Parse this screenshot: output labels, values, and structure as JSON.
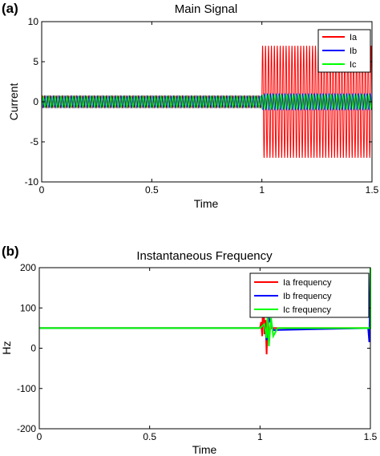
{
  "chart_data": [
    {
      "panel_label": "(a)",
      "type": "line",
      "title": "Main Signal",
      "xlabel": "Time",
      "ylabel": "Current",
      "xlim": [
        0,
        1.5
      ],
      "ylim": [
        -10,
        10
      ],
      "xticks": [
        "0",
        "0.5",
        "1",
        "1.5"
      ],
      "xtick_values": [
        0,
        0.5,
        1,
        1.5
      ],
      "yticks": [
        "10",
        "5",
        "0",
        "-5",
        "-10"
      ],
      "ytick_values": [
        10,
        5,
        0,
        -5,
        -10
      ],
      "grid": false,
      "legend_position": "top-right",
      "series": [
        {
          "name": "Ia",
          "color": "#ff0000",
          "segments": [
            {
              "x": [
                0,
                1.0
              ],
              "amplitude": 0.7,
              "offset": 0.0
            },
            {
              "x": [
                1.0,
                1.5
              ],
              "amplitude": 7.0,
              "offset": 0.0
            }
          ]
        },
        {
          "name": "Ib",
          "color": "#0000ff",
          "segments": [
            {
              "x": [
                0,
                1.0
              ],
              "amplitude": 0.7,
              "offset": 0.0
            },
            {
              "x": [
                1.0,
                1.5
              ],
              "amplitude": 1.0,
              "offset": 0.0
            }
          ]
        },
        {
          "name": "Ic",
          "color": "#00ff00",
          "segments": [
            {
              "x": [
                0,
                1.0
              ],
              "amplitude": 0.7,
              "offset": 0.0
            },
            {
              "x": [
                1.0,
                1.5
              ],
              "amplitude": 0.9,
              "offset": 0.0
            }
          ]
        }
      ]
    },
    {
      "panel_label": "(b)",
      "type": "line",
      "title": "Instantaneous Frequency",
      "xlabel": "Time",
      "ylabel": "Hz",
      "xlim": [
        0,
        1.5
      ],
      "ylim": [
        -200,
        200
      ],
      "xticks": [
        "0",
        "0.5",
        "1",
        "1.5"
      ],
      "xtick_values": [
        0,
        0.5,
        1,
        1.5
      ],
      "yticks": [
        "200",
        "100",
        "0",
        "-100",
        "-200"
      ],
      "ytick_values": [
        200,
        100,
        0,
        -100,
        -200
      ],
      "grid": false,
      "legend_position": "top-right",
      "series": [
        {
          "name": "Ia frequency",
          "color": "#ff0000",
          "x": [
            0,
            1.0,
            1.005,
            1.01,
            1.015,
            1.02,
            1.025,
            1.03,
            1.035,
            1.04,
            1.05,
            1.5
          ],
          "y": [
            50,
            50,
            65,
            30,
            160,
            35,
            70,
            -15,
            75,
            45,
            50,
            50
          ]
        },
        {
          "name": "Ib frequency",
          "color": "#0000ff",
          "x": [
            0,
            1.0,
            1.02,
            1.03,
            1.04,
            1.06,
            1.49,
            1.495,
            1.5
          ],
          "y": [
            50,
            50,
            60,
            20,
            75,
            45,
            50,
            15,
            200
          ]
        },
        {
          "name": "Ic frequency",
          "color": "#00ff00",
          "x": [
            0,
            1.0,
            1.02,
            1.03,
            1.035,
            1.04,
            1.05,
            1.06,
            1.08,
            1.5,
            1.5
          ],
          "y": [
            50,
            50,
            60,
            25,
            90,
            5,
            75,
            30,
            50,
            50,
            200
          ]
        }
      ]
    }
  ]
}
